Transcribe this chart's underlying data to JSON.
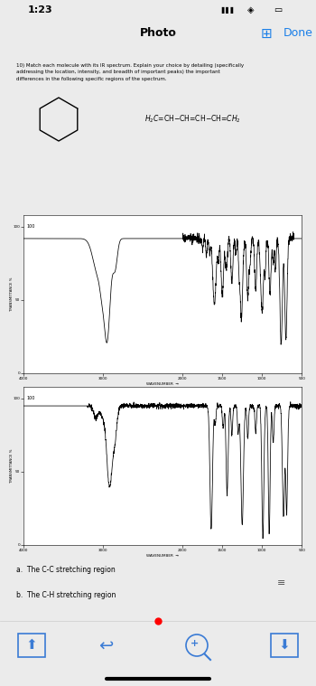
{
  "title_time": "1:23",
  "photo_label": "Photo",
  "done_label": "Done",
  "question_text": "10) Match each molecule with its IR spectrum. Explain your choice by detailing (specifically\naddressing the location, intensity, and breadth of important peaks) the important\ndifferences in the following specific regions of the spectrum.",
  "part_a": "a.  The C-C stretching region",
  "part_b": "b.  The C-H stretching region",
  "bg_color": "#ebebeb",
  "white_bg": "#ffffff",
  "gray_bar_color": "#b8b8c0",
  "toolbar_bg": "#f5f5f5",
  "status_bg": "#e8e8e8",
  "nav_bar_bg": "#f0f0f0",
  "blue_color": "#1a7fe8",
  "icon_color": "#3a7bd5"
}
